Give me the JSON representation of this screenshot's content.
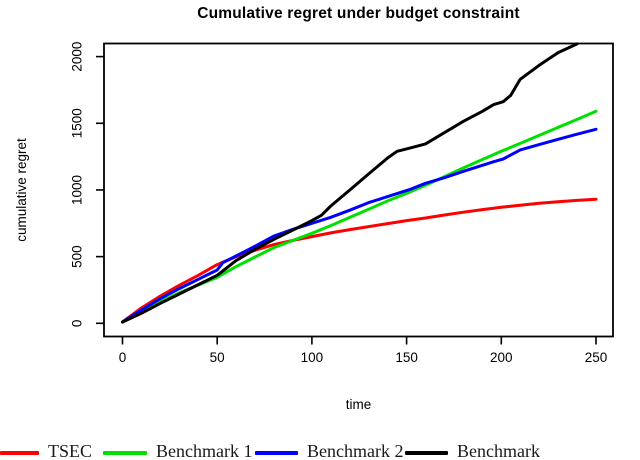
{
  "title": "Cumulative regret under budget constraint",
  "chart_data": {
    "type": "line",
    "title": "Cumulative regret under budget constraint",
    "xlabel": "time",
    "ylabel": "cumulative regret",
    "x_ticks": [
      0,
      50,
      100,
      150,
      200,
      250
    ],
    "y_ticks": [
      0,
      500,
      1000,
      1500,
      2000
    ],
    "xlim": [
      -10,
      260
    ],
    "ylim": [
      -100,
      2100
    ],
    "grid": false,
    "legend_position": "bottom-outside",
    "series": [
      {
        "name": "TSEC",
        "color": "#FF0000",
        "x": [
          0,
          10,
          20,
          30,
          40,
          50,
          60,
          70,
          80,
          90,
          100,
          110,
          120,
          130,
          140,
          150,
          160,
          170,
          180,
          190,
          200,
          210,
          220,
          230,
          240,
          250
        ],
        "values": [
          10,
          115,
          205,
          285,
          360,
          440,
          500,
          548,
          590,
          622,
          650,
          678,
          703,
          725,
          748,
          770,
          790,
          812,
          833,
          853,
          870,
          886,
          900,
          912,
          922,
          931
        ]
      },
      {
        "name": "Benchmark 1",
        "color": "#00E000",
        "x": [
          0,
          10,
          20,
          30,
          40,
          50,
          60,
          70,
          80,
          90,
          100,
          110,
          120,
          130,
          140,
          150,
          160,
          170,
          180,
          190,
          200,
          210,
          220,
          230,
          240,
          250
        ],
        "values": [
          10,
          86,
          162,
          229,
          287,
          345,
          425,
          497,
          568,
          622,
          675,
          733,
          794,
          856,
          918,
          974,
          1035,
          1100,
          1165,
          1228,
          1290,
          1349,
          1409,
          1469,
          1529,
          1590
        ]
      },
      {
        "name": "Benchmark 2",
        "color": "#0000FF",
        "x": [
          0,
          10,
          20,
          30,
          40,
          50,
          53,
          60,
          70,
          80,
          90,
          100,
          110,
          120,
          130,
          140,
          146,
          152,
          160,
          170,
          180,
          190,
          196,
          201,
          210,
          220,
          230,
          240,
          250
        ],
        "values": [
          10,
          100,
          185,
          260,
          330,
          400,
          455,
          505,
          578,
          655,
          705,
          750,
          795,
          848,
          905,
          950,
          978,
          1005,
          1050,
          1092,
          1140,
          1185,
          1212,
          1232,
          1300,
          1340,
          1380,
          1418,
          1455
        ]
      },
      {
        "name": "Benchmark",
        "color": "#000000",
        "x": [
          0,
          10,
          20,
          30,
          40,
          50,
          60,
          70,
          80,
          90,
          100,
          105,
          110,
          120,
          130,
          140,
          145,
          152,
          160,
          170,
          180,
          190,
          196,
          201,
          205,
          210,
          220,
          230,
          240
        ],
        "values": [
          10,
          75,
          150,
          220,
          290,
          360,
          470,
          555,
          630,
          700,
          770,
          810,
          880,
          1000,
          1120,
          1240,
          1290,
          1315,
          1345,
          1430,
          1515,
          1590,
          1640,
          1662,
          1710,
          1830,
          1935,
          2030,
          2095
        ],
        "note": "curve reaches top of plot box near t=240 and is clipped"
      }
    ],
    "legend": [
      {
        "label": "TSEC",
        "color": "#FF0000"
      },
      {
        "label": "Benchmark 1",
        "color": "#00E000"
      },
      {
        "label": "Benchmark 2",
        "color": "#0000FF"
      },
      {
        "label": "Benchmark",
        "color": "#000000",
        "clipped_at_right_edge": true
      }
    ]
  }
}
